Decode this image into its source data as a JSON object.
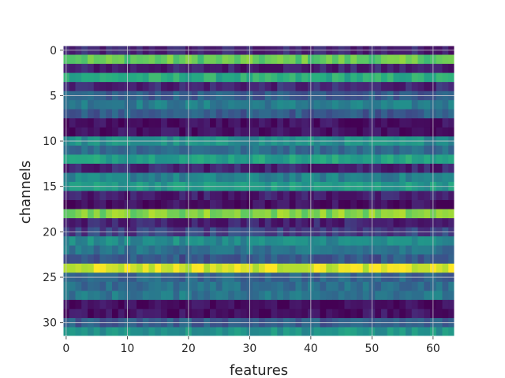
{
  "chart_data": {
    "type": "heatmap",
    "colormap": "viridis",
    "xlabel": "features",
    "ylabel": "channels",
    "n_cols": 64,
    "n_rows": 32,
    "xlim": [
      -0.5,
      63.5
    ],
    "ylim": [
      31.5,
      -0.5
    ],
    "xticks": [
      0,
      10,
      20,
      30,
      40,
      50,
      60
    ],
    "yticks": [
      0,
      5,
      10,
      15,
      20,
      25,
      30
    ],
    "grid": true,
    "grid_color": "#c9c9d0",
    "value_range": [
      0,
      1
    ],
    "row_levels": [
      0.12,
      0.76,
      0.1,
      0.62,
      0.13,
      0.3,
      0.42,
      0.3,
      0.05,
      0.05,
      0.5,
      0.36,
      0.58,
      0.12,
      0.44,
      0.55,
      0.1,
      0.05,
      0.82,
      0.12,
      0.2,
      0.48,
      0.38,
      0.28,
      0.95,
      0.33,
      0.36,
      0.4,
      0.04,
      0.06,
      0.3,
      0.52
    ]
  }
}
